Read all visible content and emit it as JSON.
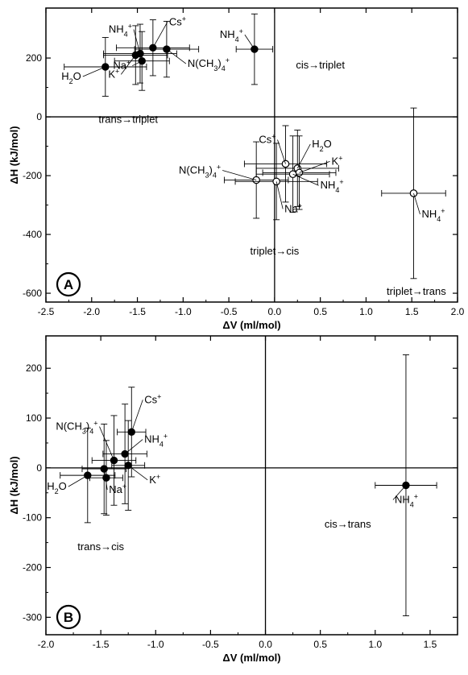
{
  "chart_data": [
    {
      "panel": "A",
      "type": "scatter",
      "title": "",
      "xlabel": "ΔV (ml/mol)",
      "ylabel": "ΔH (kJ/mol)",
      "xlim": [
        -2.5,
        2.0
      ],
      "ylim": [
        -630,
        370
      ],
      "xticks": [
        -2.5,
        -2.0,
        -1.5,
        -1.0,
        -0.5,
        0.0,
        0.5,
        1.0,
        1.5,
        2.0
      ],
      "xtick_labels": [
        "-2.5",
        "-2.0",
        "-1.5",
        "-1.0",
        "-0.5",
        "0.0",
        "0.5",
        "1.0",
        "1.5",
        "2.0"
      ],
      "yticks": [
        -600,
        -400,
        -200,
        0,
        200
      ],
      "ytick_labels": [
        "-600",
        "-400",
        "-200",
        "0",
        "200"
      ],
      "grid": false,
      "reference_lines": {
        "x": 0,
        "y": 0
      },
      "panel_label": "A",
      "region_labels": [
        {
          "text": "trans→triplet",
          "x": -1.6,
          "y": -20
        },
        {
          "text": "cis→triplet",
          "x": 0.5,
          "y": 165
        },
        {
          "text": "triplet→cis",
          "x": 0.0,
          "y": -468
        },
        {
          "text": "triplet→trans",
          "x": 1.55,
          "y": -605
        }
      ],
      "series": [
        {
          "name": "trans→triplet",
          "marker": "filled",
          "points": [
            {
              "label": "H2O",
              "x": -1.85,
              "y": 170,
              "xerr": 0.45,
              "yerr": 100
            },
            {
              "label": "NH4+",
              "x": -1.47,
              "y": 215,
              "xerr": 0.4,
              "yerr": 100
            },
            {
              "label": "Na+",
              "x": -1.45,
              "y": 190,
              "xerr": 0.3,
              "yerr": 100
            },
            {
              "label": "K+",
              "x": -1.52,
              "y": 210,
              "xerr": 0.35,
              "yerr": 100
            },
            {
              "label": "Cs+",
              "x": -1.33,
              "y": 235,
              "xerr": 0.4,
              "yerr": 95
            },
            {
              "label": "N(CH3)4+",
              "x": -1.18,
              "y": 230,
              "xerr": 0.35,
              "yerr": 95
            }
          ]
        },
        {
          "name": "cis→triplet",
          "marker": "filled",
          "points": [
            {
              "label": "NH4+",
              "x": -0.22,
              "y": 230,
              "xerr": 0.2,
              "yerr": 120
            }
          ]
        },
        {
          "name": "triplet→cis",
          "marker": "open",
          "points": [
            {
              "label": "N(CH3)4+",
              "x": -0.2,
              "y": -215,
              "xerr": 0.35,
              "yerr": 130
            },
            {
              "label": "Cs+",
              "x": 0.12,
              "y": -160,
              "xerr": 0.45,
              "yerr": 130
            },
            {
              "label": "H2O",
              "x": 0.25,
              "y": -175,
              "xerr": 0.45,
              "yerr": 130
            },
            {
              "label": "K+",
              "x": 0.27,
              "y": -190,
              "xerr": 0.4,
              "yerr": 125
            },
            {
              "label": "NH4+",
              "x": 0.2,
              "y": -195,
              "xerr": 0.4,
              "yerr": 130
            },
            {
              "label": "Na+",
              "x": 0.02,
              "y": -220,
              "xerr": 0.45,
              "yerr": 130
            }
          ]
        },
        {
          "name": "triplet→trans",
          "marker": "open",
          "points": [
            {
              "label": "NH4+",
              "x": 1.52,
              "y": -260,
              "xerr": 0.35,
              "yerr": 290
            }
          ]
        }
      ]
    },
    {
      "panel": "B",
      "type": "scatter",
      "title": "",
      "xlabel": "ΔV (ml/mol)",
      "ylabel": "ΔH (kJ/mol)",
      "xlim": [
        -2.0,
        1.75
      ],
      "ylim": [
        -335,
        265
      ],
      "xticks": [
        -2.0,
        -1.5,
        -1.0,
        -0.5,
        0.0,
        0.5,
        1.0,
        1.5
      ],
      "xtick_labels": [
        "-2.0",
        "-1.5",
        "-1.0",
        "-0.5",
        "0.0",
        "0.5",
        "1.0",
        "1.5"
      ],
      "yticks": [
        -300,
        -200,
        -100,
        0,
        100,
        200
      ],
      "ytick_labels": [
        "-300",
        "-200",
        "-100",
        "0",
        "100",
        "200"
      ],
      "grid": false,
      "reference_lines": {
        "x": 0,
        "y": 0
      },
      "panel_label": "B",
      "region_labels": [
        {
          "text": "trans→cis",
          "x": -1.5,
          "y": -165
        },
        {
          "text": "cis→trans",
          "x": 0.75,
          "y": -120
        }
      ],
      "series": [
        {
          "name": "trans→cis",
          "marker": "filled",
          "points": [
            {
              "label": "H2O",
              "x": -1.62,
              "y": -15,
              "xerr": 0.25,
              "yerr": 95
            },
            {
              "label": "Na+",
              "x": -1.47,
              "y": -2,
              "xerr": 0.2,
              "yerr": 90
            },
            {
              "label": "Na+",
              "x": -1.45,
              "y": -20,
              "xerr": 0.15,
              "yerr": 75
            },
            {
              "label": "N(CH3)4+",
              "x": -1.38,
              "y": 15,
              "xerr": 0.2,
              "yerr": 90
            },
            {
              "label": "NH4+",
              "x": -1.28,
              "y": 28,
              "xerr": 0.2,
              "yerr": 100
            },
            {
              "label": "K+",
              "x": -1.25,
              "y": 5,
              "xerr": 0.15,
              "yerr": 90
            },
            {
              "label": "Cs+",
              "x": -1.22,
              "y": 72,
              "xerr": 0.13,
              "yerr": 90
            }
          ]
        },
        {
          "name": "cis→trans",
          "marker": "filled",
          "points": [
            {
              "label": "NH4+",
              "x": 1.28,
              "y": -35,
              "xerr": 0.28,
              "yerr": 262
            }
          ]
        }
      ]
    }
  ]
}
